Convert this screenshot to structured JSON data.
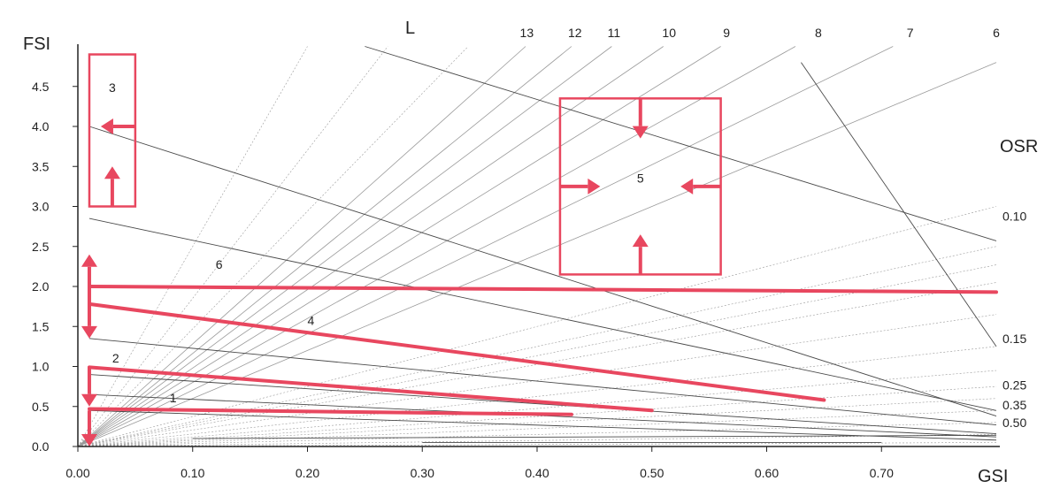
{
  "chart_data": {
    "type": "line",
    "title": "",
    "xlabel": "GSI",
    "ylabel": "FSI",
    "xlim": [
      0,
      0.8
    ],
    "ylim": [
      0,
      5.0
    ],
    "x_ticks": [
      "0.00",
      "0.10",
      "0.20",
      "0.30",
      "0.40",
      "0.50",
      "0.60",
      "0.70"
    ],
    "y_ticks": [
      "0.0",
      "0.5",
      "1.0",
      "1.5",
      "2.0",
      "2.5",
      "3.0",
      "3.5",
      "4.0",
      "4.5"
    ],
    "L_label": "L",
    "osr_label": "OSR",
    "l_lines": [
      {
        "label": "13",
        "L": 13,
        "label_x": 0.391
      },
      {
        "label": "12",
        "label_x": 0.433
      },
      {
        "label": "11",
        "label_x": 0.467
      },
      {
        "label": "10",
        "label_x": 0.515
      },
      {
        "label": "9",
        "label_x": 0.565
      },
      {
        "label": "8",
        "label_x": 0.645
      },
      {
        "label": "7",
        "label_x": 0.725
      },
      {
        "label": "6",
        "label_x": 0.8
      },
      {
        "label": "",
        "end": [
          0.2,
          5.0
        ]
      },
      {
        "label": "",
        "end": [
          0.27,
          5.0
        ]
      },
      {
        "label": "",
        "end": [
          0.34,
          5.0
        ]
      },
      {
        "label": "",
        "end": [
          0.8,
          3.0
        ]
      },
      {
        "label": "",
        "end": [
          0.8,
          2.5
        ]
      },
      {
        "label": "",
        "end": [
          0.8,
          2.27
        ]
      },
      {
        "label": "",
        "end": [
          0.8,
          2.05
        ]
      },
      {
        "label": "",
        "end": [
          0.8,
          1.65
        ]
      },
      {
        "label": "",
        "end": [
          0.8,
          1.25
        ]
      },
      {
        "label": "",
        "end": [
          0.8,
          0.95
        ]
      },
      {
        "label": "",
        "end": [
          0.8,
          0.75
        ]
      },
      {
        "label": "",
        "end": [
          0.8,
          0.6
        ]
      },
      {
        "label": "",
        "end": [
          0.8,
          0.45
        ]
      },
      {
        "label": "",
        "end": [
          0.8,
          0.3
        ]
      },
      {
        "label": "",
        "end": [
          0.8,
          0.15
        ]
      },
      {
        "label": "",
        "end": [
          0.8,
          0.05
        ]
      }
    ],
    "l_lines_resolved": [
      {
        "label": "13",
        "end": [
          0.39,
          5.0
        ]
      },
      {
        "label": "12",
        "end": [
          0.43,
          5.0
        ]
      },
      {
        "label": "11",
        "end": [
          0.465,
          5.0
        ]
      },
      {
        "label": "10",
        "end": [
          0.51,
          5.0
        ]
      },
      {
        "label": "9",
        "end": [
          0.56,
          5.0
        ]
      },
      {
        "label": "8",
        "end": [
          0.625,
          5.0
        ]
      },
      {
        "label": "7",
        "end": [
          0.71,
          5.0
        ]
      },
      {
        "label": "6",
        "end": [
          0.8,
          4.8
        ]
      }
    ],
    "osr_lines": [
      {
        "label": "",
        "points": [
          [
            0.01,
            4.0
          ],
          [
            0.8,
            0.38
          ]
        ]
      },
      {
        "label": "0.10",
        "label_y": 2.88,
        "points": [
          [
            0.01,
            2.85
          ],
          [
            0.8,
            0.45
          ]
        ]
      },
      {
        "label": "0.15",
        "label_y": 1.35,
        "points": [
          [
            0.01,
            1.35
          ],
          [
            0.8,
            0.27
          ]
        ]
      },
      {
        "label": "0.25",
        "label_y": 0.77,
        "points": [
          [
            0.01,
            0.9
          ],
          [
            0.8,
            0.16
          ]
        ]
      },
      {
        "label": "0.35",
        "label_y": 0.52,
        "points": [
          [
            0.01,
            0.65
          ],
          [
            0.8,
            0.12
          ]
        ]
      },
      {
        "label": "0.50",
        "label_y": 0.3,
        "points": [
          [
            0.01,
            0.45
          ],
          [
            0.8,
            0.08
          ]
        ]
      }
    ],
    "other_lines": [
      {
        "label": "",
        "points": [
          [
            0.25,
            5.0
          ],
          [
            0.8,
            2.57
          ]
        ]
      },
      {
        "label": "",
        "points": [
          [
            0.63,
            4.8
          ],
          [
            0.8,
            1.25
          ]
        ]
      },
      {
        "label": "",
        "points": [
          [
            0.1,
            0.1
          ],
          [
            0.8,
            0.14
          ]
        ]
      },
      {
        "label": "",
        "points": [
          [
            0.3,
            0.05
          ],
          [
            0.7,
            0.05
          ]
        ]
      }
    ],
    "highlight_lines": [
      {
        "label": "1",
        "points": [
          [
            0.01,
            0.47
          ],
          [
            0.43,
            0.4
          ]
        ],
        "label_at": [
          0.08,
          0.55
        ]
      },
      {
        "label": "2",
        "points": [
          [
            0.01,
            0.99
          ],
          [
            0.5,
            0.45
          ]
        ],
        "label_at": [
          0.03,
          1.05
        ]
      },
      {
        "label": "4",
        "points": [
          [
            0.01,
            1.78
          ],
          [
            0.65,
            0.58
          ]
        ],
        "label_at": [
          0.2,
          1.52
        ]
      },
      {
        "label": "6",
        "points": [
          [
            0.01,
            2.0
          ],
          [
            0.8,
            1.93
          ]
        ],
        "label_at": [
          0.12,
          2.22
        ]
      }
    ],
    "boxes": [
      {
        "label": "3",
        "x": [
          0.01,
          0.05
        ],
        "y": [
          3.0,
          4.9
        ],
        "label_at": [
          0.03,
          4.43
        ]
      },
      {
        "label": "5",
        "x": [
          0.42,
          0.56
        ],
        "y": [
          2.15,
          4.35
        ],
        "label_at": [
          0.49,
          3.3
        ]
      }
    ],
    "arrows": [
      {
        "from": [
          0.05,
          4.0
        ],
        "to": [
          0.02,
          4.0
        ]
      },
      {
        "from": [
          0.03,
          3.0
        ],
        "to": [
          0.03,
          3.5
        ]
      },
      {
        "from": [
          0.49,
          4.35
        ],
        "to": [
          0.49,
          3.85
        ]
      },
      {
        "from": [
          0.49,
          2.15
        ],
        "to": [
          0.49,
          2.65
        ]
      },
      {
        "from": [
          0.42,
          3.25
        ],
        "to": [
          0.455,
          3.25
        ]
      },
      {
        "from": [
          0.56,
          3.25
        ],
        "to": [
          0.525,
          3.25
        ]
      },
      {
        "from": [
          0.01,
          2.0
        ],
        "to": [
          0.01,
          2.4
        ]
      },
      {
        "from": [
          0.01,
          2.0
        ],
        "to": [
          0.01,
          1.35
        ]
      },
      {
        "from": [
          0.01,
          1.0
        ],
        "to": [
          0.01,
          0.5
        ]
      },
      {
        "from": [
          0.01,
          0.45
        ],
        "to": [
          0.01,
          0.0
        ]
      }
    ],
    "grid": false,
    "colors": {
      "highlight": "#e8475f",
      "line": "#4a4a4a",
      "fan": "#9a9a9a"
    }
  }
}
